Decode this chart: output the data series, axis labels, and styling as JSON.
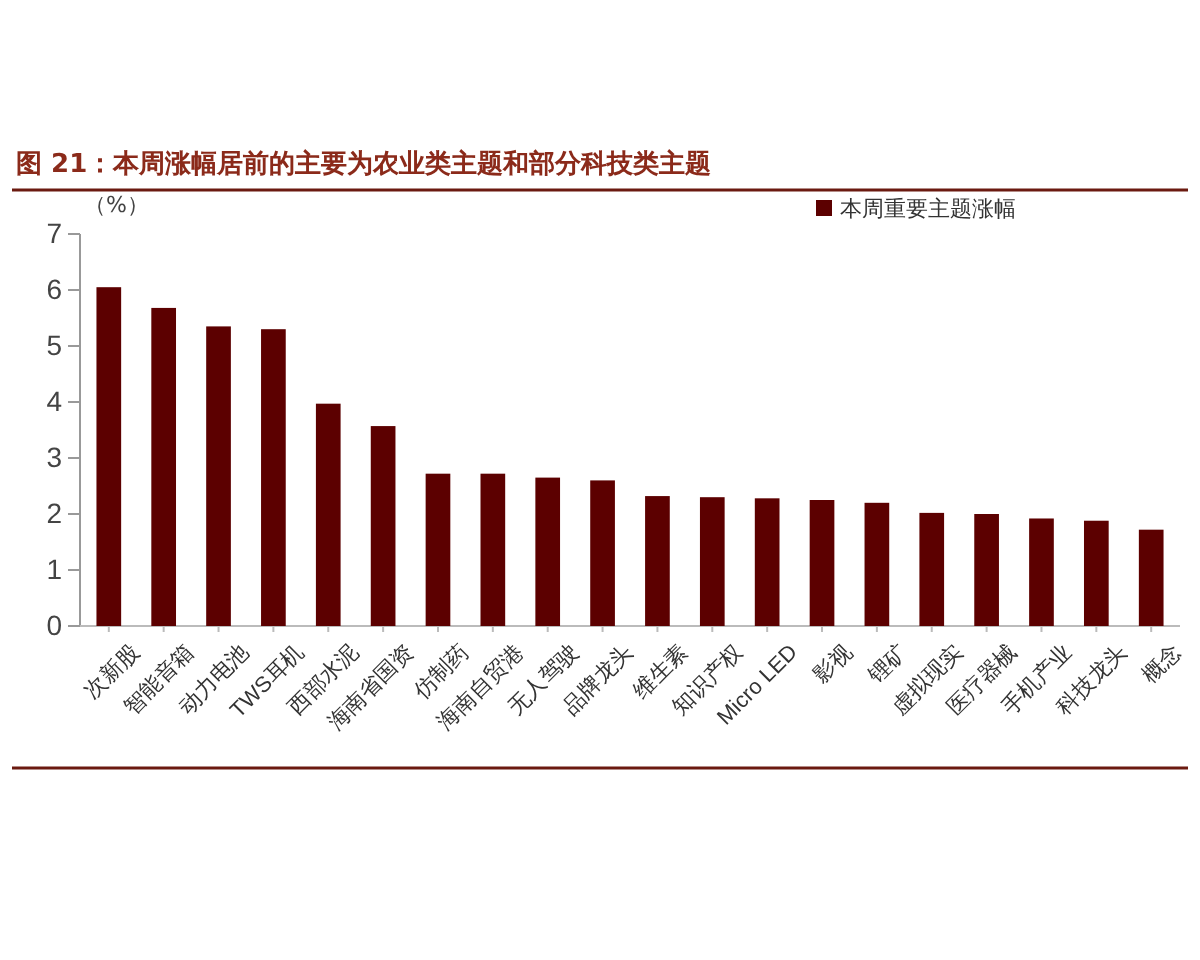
{
  "chart_data": {
    "type": "bar",
    "title": "图 21：本周涨幅居前的主要为农业类主题和部分科技类主题",
    "ylabel": "（%）",
    "categories": [
      "次新股",
      "智能音箱",
      "动力电池",
      "TWS耳机",
      "西部水泥",
      "海南省国资",
      "仿制药",
      "海南自贸港",
      "无人驾驶",
      "品牌龙头",
      "维生素",
      "知识产权",
      "Micro LED",
      "影视",
      "锂矿",
      "虚拟现实",
      "医疗器械",
      "手机产业",
      "科技龙头",
      "概念"
    ],
    "series": [
      {
        "name": "本周重要主题涨幅",
        "color": "#5c0000",
        "values": [
          6.05,
          5.68,
          5.35,
          5.3,
          3.97,
          3.57,
          2.72,
          2.72,
          2.65,
          2.6,
          2.32,
          2.3,
          2.28,
          2.25,
          2.2,
          2.02,
          2.0,
          1.92,
          1.88,
          1.72
        ]
      }
    ],
    "ylim": [
      0,
      7
    ],
    "yticks": [
      0,
      1,
      2,
      3,
      4,
      5,
      6,
      7
    ],
    "grid": false,
    "legend": "top right"
  }
}
